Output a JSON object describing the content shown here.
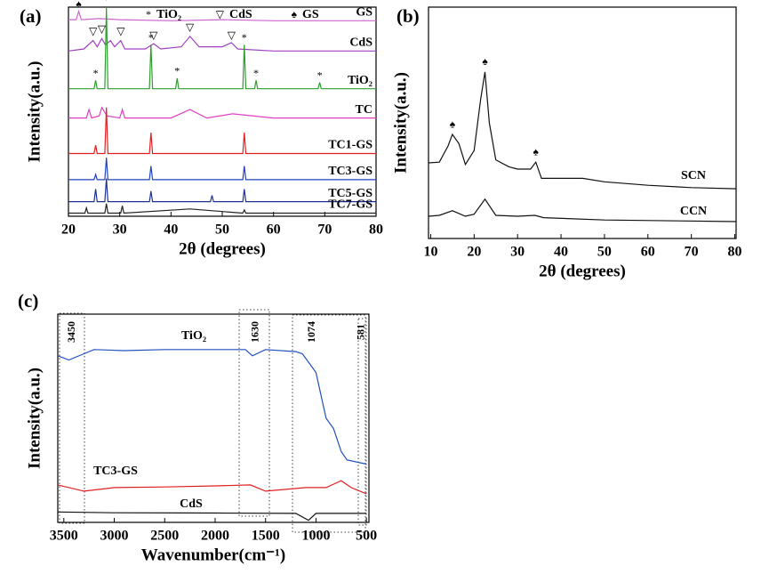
{
  "chart_data": [
    {
      "type": "line",
      "panel": "(a)",
      "x_label": "2θ (degrees)",
      "y_label": "Intensity(a.u.)",
      "xlim": [
        20,
        80
      ],
      "xticks": [
        20,
        30,
        40,
        50,
        60,
        70,
        80
      ],
      "ylim": [
        0,
        100
      ],
      "legend": [
        {
          "symbol": "*",
          "label": "TiO₂"
        },
        {
          "symbol": "▽",
          "label": "CdS"
        },
        {
          "symbol": "♠",
          "label": "GS"
        }
      ],
      "markers": [
        {
          "symbol": "♠",
          "x": 22,
          "y": 101
        },
        {
          "symbol": "▽",
          "x": 24.8,
          "y": 88
        },
        {
          "symbol": "▽",
          "x": 26.5,
          "y": 89
        },
        {
          "symbol": "▽",
          "x": 30.2,
          "y": 88
        },
        {
          "symbol": "▽",
          "x": 36.6,
          "y": 86
        },
        {
          "symbol": "▽",
          "x": 43.7,
          "y": 90
        },
        {
          "symbol": "▽",
          "x": 51.8,
          "y": 86
        },
        {
          "symbol": "*",
          "x": 25.3,
          "y": 68
        },
        {
          "symbol": "*",
          "x": 27.4,
          "y": 103
        },
        {
          "symbol": "*",
          "x": 36.1,
          "y": 85
        },
        {
          "symbol": "*",
          "x": 41.2,
          "y": 69
        },
        {
          "symbol": "*",
          "x": 54.3,
          "y": 85
        },
        {
          "symbol": "*",
          "x": 56.6,
          "y": 68
        },
        {
          "symbol": "*",
          "x": 69,
          "y": 67
        }
      ],
      "series": [
        {
          "name": "GS",
          "color": "#cc66cc",
          "x": [
            20,
            21.5,
            22,
            22.5,
            26,
            30,
            40,
            50,
            60,
            70,
            80
          ],
          "values": [
            94,
            94,
            98,
            94,
            94.5,
            94,
            93.5,
            94,
            93.5,
            93.5,
            93.5
          ]
        },
        {
          "name": "CdS",
          "color": "#a040c0",
          "x": [
            20,
            23,
            24.8,
            25.6,
            26.5,
            27.2,
            28.2,
            29,
            30.2,
            31,
            35,
            36.6,
            38,
            42,
            43.7,
            45.5,
            50,
            51.8,
            53,
            60,
            70,
            80
          ],
          "values": [
            79,
            80,
            84,
            81,
            85,
            82,
            84,
            81,
            84,
            80,
            80,
            82.5,
            80,
            81,
            86,
            81,
            81,
            83,
            80,
            79,
            79,
            79
          ]
        },
        {
          "name": "TiO₂",
          "color": "#2e9e2e",
          "x": [
            20,
            25,
            25.3,
            25.6,
            27.1,
            27.4,
            27.7,
            35.8,
            36.1,
            36.4,
            40.9,
            41.2,
            41.5,
            54,
            54.3,
            54.6,
            56.3,
            56.6,
            56.9,
            68.7,
            69,
            69.3,
            80
          ],
          "values": [
            61,
            61,
            65,
            61,
            61,
            100,
            61,
            61,
            82,
            61,
            61,
            66,
            61,
            61,
            82,
            61,
            61,
            65,
            61,
            61,
            64,
            61,
            61
          ]
        },
        {
          "name": "TC",
          "color": "#e040c0",
          "x": [
            20,
            23.5,
            24,
            24.5,
            26,
            26.5,
            27.5,
            30,
            30.5,
            31,
            40,
            43.7,
            47,
            52,
            60,
            80
          ],
          "values": [
            47,
            47,
            51,
            47,
            48,
            52,
            48,
            47,
            51,
            47,
            47,
            51,
            47,
            49,
            47,
            47
          ]
        },
        {
          "name": "TC1-GS",
          "color": "#e02020",
          "x": [
            20,
            25,
            25.3,
            25.6,
            27.1,
            27.4,
            27.7,
            35.8,
            36.1,
            36.4,
            54,
            54.3,
            54.6,
            80
          ],
          "values": [
            30,
            30,
            34,
            30,
            30,
            52,
            30,
            30,
            40,
            30,
            30,
            40,
            30,
            30
          ]
        },
        {
          "name": "TC3-GS",
          "color": "#2040c0",
          "x": [
            20,
            25,
            25.3,
            25.6,
            27.1,
            27.4,
            27.7,
            35.8,
            36.1,
            36.4,
            54,
            54.3,
            54.6,
            80
          ],
          "values": [
            17.5,
            17.5,
            20,
            17.5,
            17.5,
            28,
            17.5,
            17.5,
            24,
            17.5,
            17.5,
            24,
            17.5,
            17.5
          ]
        },
        {
          "name": "TC5-GS",
          "color": "#203090",
          "x": [
            20,
            25,
            25.3,
            25.6,
            27.1,
            27.4,
            27.7,
            35.8,
            36.1,
            36.4,
            47.7,
            48,
            48.3,
            54,
            54.3,
            54.6,
            80
          ],
          "values": [
            7,
            7,
            13,
            7,
            7,
            18,
            7,
            7,
            12,
            7,
            7,
            10,
            7,
            7,
            13,
            7,
            7
          ]
        },
        {
          "name": "TC7-GS",
          "color": "#222222",
          "x": [
            20,
            23.2,
            23.5,
            23.8,
            27.1,
            27.4,
            27.7,
            30.2,
            30.5,
            30.8,
            43.7,
            54,
            54.3,
            54.6,
            80
          ],
          "values": [
            1.5,
            1.5,
            4,
            1.5,
            1.5,
            6,
            1.5,
            1.5,
            5,
            1.5,
            3.5,
            1.5,
            3,
            1.5,
            1.5
          ]
        }
      ]
    },
    {
      "type": "line",
      "panel": "(b)",
      "x_label": "2θ (degrees)",
      "y_label": "Intensity(a.u.)",
      "xlim": [
        9.5,
        80.3
      ],
      "xticks": [
        10,
        20,
        30,
        40,
        50,
        60,
        70,
        80
      ],
      "ylim": [
        0,
        100
      ],
      "markers": [
        {
          "symbol": "♠",
          "x": 15,
          "y": 49
        },
        {
          "symbol": "♠",
          "x": 22.5,
          "y": 76
        },
        {
          "symbol": "♠",
          "x": 34.2,
          "y": 37
        }
      ],
      "series": [
        {
          "name": "SCN",
          "color": "#111111",
          "x": [
            9.5,
            12,
            14,
            15,
            16.5,
            18,
            20,
            21.5,
            22.5,
            23.5,
            25,
            28,
            30,
            33,
            34.2,
            35.5,
            40,
            45,
            50,
            60,
            70,
            80.3
          ],
          "values": [
            32.7,
            33,
            40,
            45,
            41,
            32,
            38,
            60,
            72,
            50,
            34,
            31,
            30,
            30,
            33,
            26,
            26,
            26,
            24.5,
            23,
            22,
            21.5
          ]
        },
        {
          "name": "CCN",
          "color": "#111111",
          "x": [
            9.5,
            12,
            15,
            18,
            20,
            22.5,
            25,
            30,
            34,
            36,
            50,
            80.3
          ],
          "values": [
            9.6,
            10,
            12,
            9.6,
            10.5,
            17,
            10,
            9.6,
            10,
            9,
            8,
            7.3
          ]
        }
      ]
    },
    {
      "type": "line",
      "panel": "(c)",
      "x_label": "Wavenumber(cm⁻¹)",
      "y_label": "Intensity(a.u.)",
      "xlim": [
        3560,
        475
      ],
      "xticks": [
        3500,
        3000,
        2500,
        2000,
        1500,
        1000,
        500
      ],
      "ylim": [
        0,
        100
      ],
      "peak_labels": [
        3450,
        1630,
        1074,
        581
      ],
      "series": [
        {
          "name": "TiO₂",
          "color": "#2050c0",
          "x": [
            3560,
            3450,
            3300,
            3200,
            2900,
            2500,
            2000,
            1700,
            1630,
            1500,
            1200,
            1135,
            1000,
            900,
            826,
            750,
            693,
            500
          ],
          "values": [
            80,
            78,
            81,
            83,
            82.5,
            83,
            83,
            83,
            80,
            83,
            82,
            81,
            72,
            50,
            45,
            34,
            30,
            28
          ]
        },
        {
          "name": "TC3-GS",
          "color": "#e02020",
          "x": [
            3560,
            3300,
            3000,
            2500,
            2000,
            1650,
            1500,
            1100,
            900,
            750,
            650,
            500
          ],
          "values": [
            18,
            15,
            16.7,
            17,
            17.5,
            18,
            15,
            16.7,
            16.7,
            20,
            16.7,
            13.7
          ]
        },
        {
          "name": "CdS",
          "color": "#111111",
          "x": [
            3560,
            3000,
            2000,
            1200,
            1074,
            1000,
            800,
            500
          ],
          "values": [
            5,
            4.6,
            4.5,
            4.3,
            1,
            4.3,
            4.3,
            4.3
          ]
        }
      ]
    }
  ]
}
